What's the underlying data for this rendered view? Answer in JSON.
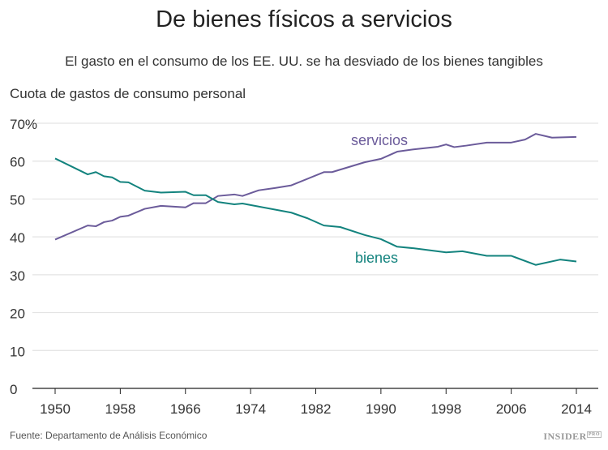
{
  "chart_data": {
    "type": "line",
    "title": "De bienes físicos a servicios",
    "subtitle": "El gasto en el consumo de los EE. UU. se ha desviado de los bienes tangibles",
    "ylabel": "Cuota de gastos de consumo personal",
    "xlabel": "",
    "ylim": [
      0,
      70
    ],
    "xlim": [
      1950,
      2014
    ],
    "y_ticks": [
      "0",
      "10",
      "20",
      "30",
      "40",
      "50",
      "60",
      "70%"
    ],
    "y_tick_values": [
      0,
      10,
      20,
      30,
      40,
      50,
      60,
      70
    ],
    "x_ticks": [
      "1950",
      "1958",
      "1966",
      "1974",
      "1982",
      "1990",
      "1998",
      "2006",
      "2014"
    ],
    "x_tick_values": [
      1950,
      1958,
      1966,
      1974,
      1982,
      1990,
      1998,
      2006,
      2014
    ],
    "grid": true,
    "series": [
      {
        "name": "servicios",
        "color": "#6b5b9a",
        "x": [
          1950,
          1954,
          1955,
          1956,
          1957,
          1958,
          1959,
          1961,
          1963,
          1966,
          1967,
          1968.5,
          1970,
          1972,
          1973,
          1975,
          1977,
          1979,
          1983,
          1984,
          1988,
          1990,
          1992,
          1994,
          1997,
          1998,
          1999,
          2000.5,
          2003,
          2006,
          2007.7,
          2009,
          2011,
          2014
        ],
        "values": [
          39.3,
          43.0,
          42.8,
          43.9,
          44.3,
          45.3,
          45.6,
          47.4,
          48.2,
          47.8,
          48.9,
          48.9,
          50.8,
          51.2,
          50.8,
          52.3,
          52.9,
          53.6,
          57.1,
          57.1,
          59.7,
          60.6,
          62.5,
          63.1,
          63.8,
          64.4,
          63.7,
          64.1,
          64.9,
          64.9,
          65.7,
          67.2,
          66.2,
          66.4
        ]
      },
      {
        "name": "bienes",
        "color": "#13837e",
        "x": [
          1950,
          1954,
          1955,
          1956,
          1957,
          1958,
          1959,
          1961,
          1963,
          1966,
          1967,
          1968.5,
          1970,
          1972,
          1973,
          1975,
          1977,
          1979,
          1981,
          1983,
          1985,
          1988,
          1990,
          1992,
          1994,
          1998,
          2000,
          2003,
          2006,
          2009,
          2012,
          2014
        ],
        "values": [
          60.7,
          56.5,
          57.1,
          56.0,
          55.7,
          54.5,
          54.4,
          52.2,
          51.7,
          51.9,
          51.0,
          51.0,
          49.2,
          48.6,
          48.8,
          48.0,
          47.2,
          46.4,
          44.9,
          43.0,
          42.6,
          40.5,
          39.4,
          37.4,
          37.0,
          35.9,
          36.2,
          35.0,
          35.0,
          32.6,
          34.0,
          33.5
        ]
      }
    ]
  },
  "source": "Fuente: Departamento de Análisis Económico",
  "logo": "INSIDER PRO",
  "colors": {
    "grid": "#e3e3e3",
    "axis": "#222222"
  }
}
